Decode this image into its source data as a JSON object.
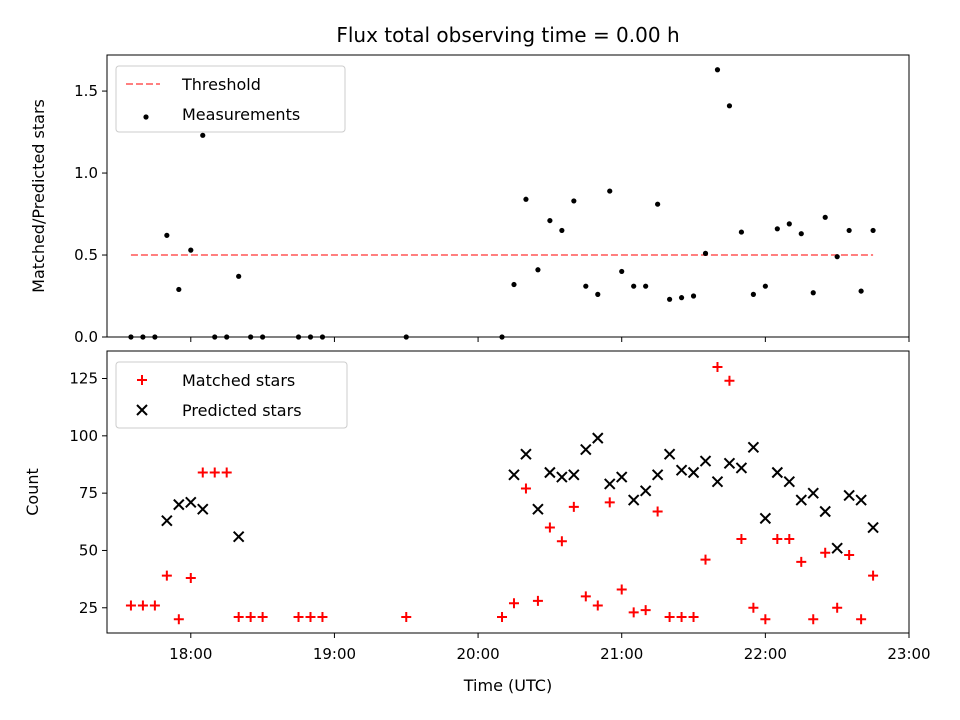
{
  "title": "Flux total observing time = 0.00 h",
  "x_axis": {
    "label": "Time (UTC)",
    "ticks": [
      "18:00",
      "19:00",
      "20:00",
      "21:00",
      "22:00",
      "23:00"
    ]
  },
  "chart_data": [
    {
      "type": "scatter",
      "ylabel": "Matched/Predicted stars",
      "xlim": [
        "17:25",
        "23:00"
      ],
      "ylim": [
        0,
        1.72
      ],
      "yticks": [
        "0.0",
        "0.5",
        "1.0",
        "1.5"
      ],
      "legend_placement": "upper-left",
      "series": [
        {
          "name": "Threshold",
          "kind": "line",
          "style": "dashed",
          "color": "#ff7f7f",
          "points": [
            [
              "17:35",
              0.5
            ],
            [
              "22:45",
              0.5
            ]
          ]
        },
        {
          "name": "Measurements",
          "kind": "points",
          "color": "#000000",
          "points": [
            [
              "17:35",
              0.0
            ],
            [
              "17:40",
              0.0
            ],
            [
              "17:45",
              0.0
            ],
            [
              "17:50",
              0.62
            ],
            [
              "17:55",
              0.29
            ],
            [
              "18:00",
              0.53
            ],
            [
              "18:05",
              1.23
            ],
            [
              "18:10",
              0.0
            ],
            [
              "18:15",
              0.0
            ],
            [
              "18:20",
              0.37
            ],
            [
              "18:25",
              0.0
            ],
            [
              "18:30",
              0.0
            ],
            [
              "18:45",
              0.0
            ],
            [
              "18:50",
              0.0
            ],
            [
              "18:55",
              0.0
            ],
            [
              "19:30",
              0.0
            ],
            [
              "20:10",
              0.0
            ],
            [
              "20:15",
              0.32
            ],
            [
              "20:20",
              0.84
            ],
            [
              "20:25",
              0.41
            ],
            [
              "20:30",
              0.71
            ],
            [
              "20:35",
              0.65
            ],
            [
              "20:40",
              0.83
            ],
            [
              "20:45",
              0.31
            ],
            [
              "20:50",
              0.26
            ],
            [
              "20:55",
              0.89
            ],
            [
              "21:00",
              0.4
            ],
            [
              "21:05",
              0.31
            ],
            [
              "21:10",
              0.31
            ],
            [
              "21:15",
              0.81
            ],
            [
              "21:20",
              0.23
            ],
            [
              "21:25",
              0.24
            ],
            [
              "21:30",
              0.25
            ],
            [
              "21:35",
              0.51
            ],
            [
              "21:40",
              1.63
            ],
            [
              "21:45",
              1.41
            ],
            [
              "21:50",
              0.64
            ],
            [
              "21:55",
              0.26
            ],
            [
              "22:00",
              0.31
            ],
            [
              "22:05",
              0.66
            ],
            [
              "22:10",
              0.69
            ],
            [
              "22:15",
              0.63
            ],
            [
              "22:20",
              0.27
            ],
            [
              "22:25",
              0.73
            ],
            [
              "22:30",
              0.49
            ],
            [
              "22:35",
              0.65
            ],
            [
              "22:40",
              0.28
            ],
            [
              "22:45",
              0.65
            ]
          ]
        }
      ]
    },
    {
      "type": "scatter",
      "ylabel": "Count",
      "xlim": [
        "17:25",
        "23:00"
      ],
      "ylim": [
        14,
        137
      ],
      "yticks": [
        "25",
        "50",
        "75",
        "100",
        "125"
      ],
      "legend_placement": "upper-left",
      "series": [
        {
          "name": "Matched stars",
          "kind": "plus",
          "color": "#ff0000",
          "points": [
            [
              "17:35",
              26
            ],
            [
              "17:40",
              26
            ],
            [
              "17:45",
              26
            ],
            [
              "17:50",
              39
            ],
            [
              "17:55",
              20
            ],
            [
              "18:00",
              38
            ],
            [
              "18:05",
              84
            ],
            [
              "18:10",
              84
            ],
            [
              "18:15",
              84
            ],
            [
              "18:20",
              21
            ],
            [
              "18:25",
              21
            ],
            [
              "18:30",
              21
            ],
            [
              "18:45",
              21
            ],
            [
              "18:50",
              21
            ],
            [
              "18:55",
              21
            ],
            [
              "19:30",
              21
            ],
            [
              "20:10",
              21
            ],
            [
              "20:15",
              27
            ],
            [
              "20:20",
              77
            ],
            [
              "20:25",
              28
            ],
            [
              "20:30",
              60
            ],
            [
              "20:35",
              54
            ],
            [
              "20:40",
              69
            ],
            [
              "20:45",
              30
            ],
            [
              "20:50",
              26
            ],
            [
              "20:55",
              71
            ],
            [
              "21:00",
              33
            ],
            [
              "21:05",
              23
            ],
            [
              "21:10",
              24
            ],
            [
              "21:15",
              67
            ],
            [
              "21:20",
              21
            ],
            [
              "21:25",
              21
            ],
            [
              "21:30",
              21
            ],
            [
              "21:35",
              46
            ],
            [
              "21:40",
              130
            ],
            [
              "21:45",
              124
            ],
            [
              "21:50",
              55
            ],
            [
              "21:55",
              25
            ],
            [
              "22:00",
              20
            ],
            [
              "22:05",
              55
            ],
            [
              "22:10",
              55
            ],
            [
              "22:15",
              45
            ],
            [
              "22:20",
              20
            ],
            [
              "22:25",
              49
            ],
            [
              "22:30",
              25
            ],
            [
              "22:35",
              48
            ],
            [
              "22:40",
              20
            ],
            [
              "22:45",
              39
            ]
          ]
        },
        {
          "name": "Predicted stars",
          "kind": "cross",
          "color": "#000000",
          "points": [
            [
              "17:50",
              63
            ],
            [
              "17:55",
              70
            ],
            [
              "18:00",
              71
            ],
            [
              "18:05",
              68
            ],
            [
              "18:20",
              56
            ],
            [
              "20:15",
              83
            ],
            [
              "20:20",
              92
            ],
            [
              "20:25",
              68
            ],
            [
              "20:30",
              84
            ],
            [
              "20:35",
              82
            ],
            [
              "20:40",
              83
            ],
            [
              "20:45",
              94
            ],
            [
              "20:50",
              99
            ],
            [
              "20:55",
              79
            ],
            [
              "21:00",
              82
            ],
            [
              "21:05",
              72
            ],
            [
              "21:10",
              76
            ],
            [
              "21:15",
              83
            ],
            [
              "21:20",
              92
            ],
            [
              "21:25",
              85
            ],
            [
              "21:30",
              84
            ],
            [
              "21:35",
              89
            ],
            [
              "21:40",
              80
            ],
            [
              "21:45",
              88
            ],
            [
              "21:50",
              86
            ],
            [
              "21:55",
              95
            ],
            [
              "22:00",
              64
            ],
            [
              "22:05",
              84
            ],
            [
              "22:10",
              80
            ],
            [
              "22:15",
              72
            ],
            [
              "22:20",
              75
            ],
            [
              "22:25",
              67
            ],
            [
              "22:30",
              51
            ],
            [
              "22:35",
              74
            ],
            [
              "22:40",
              72
            ],
            [
              "22:45",
              60
            ]
          ]
        }
      ]
    }
  ]
}
